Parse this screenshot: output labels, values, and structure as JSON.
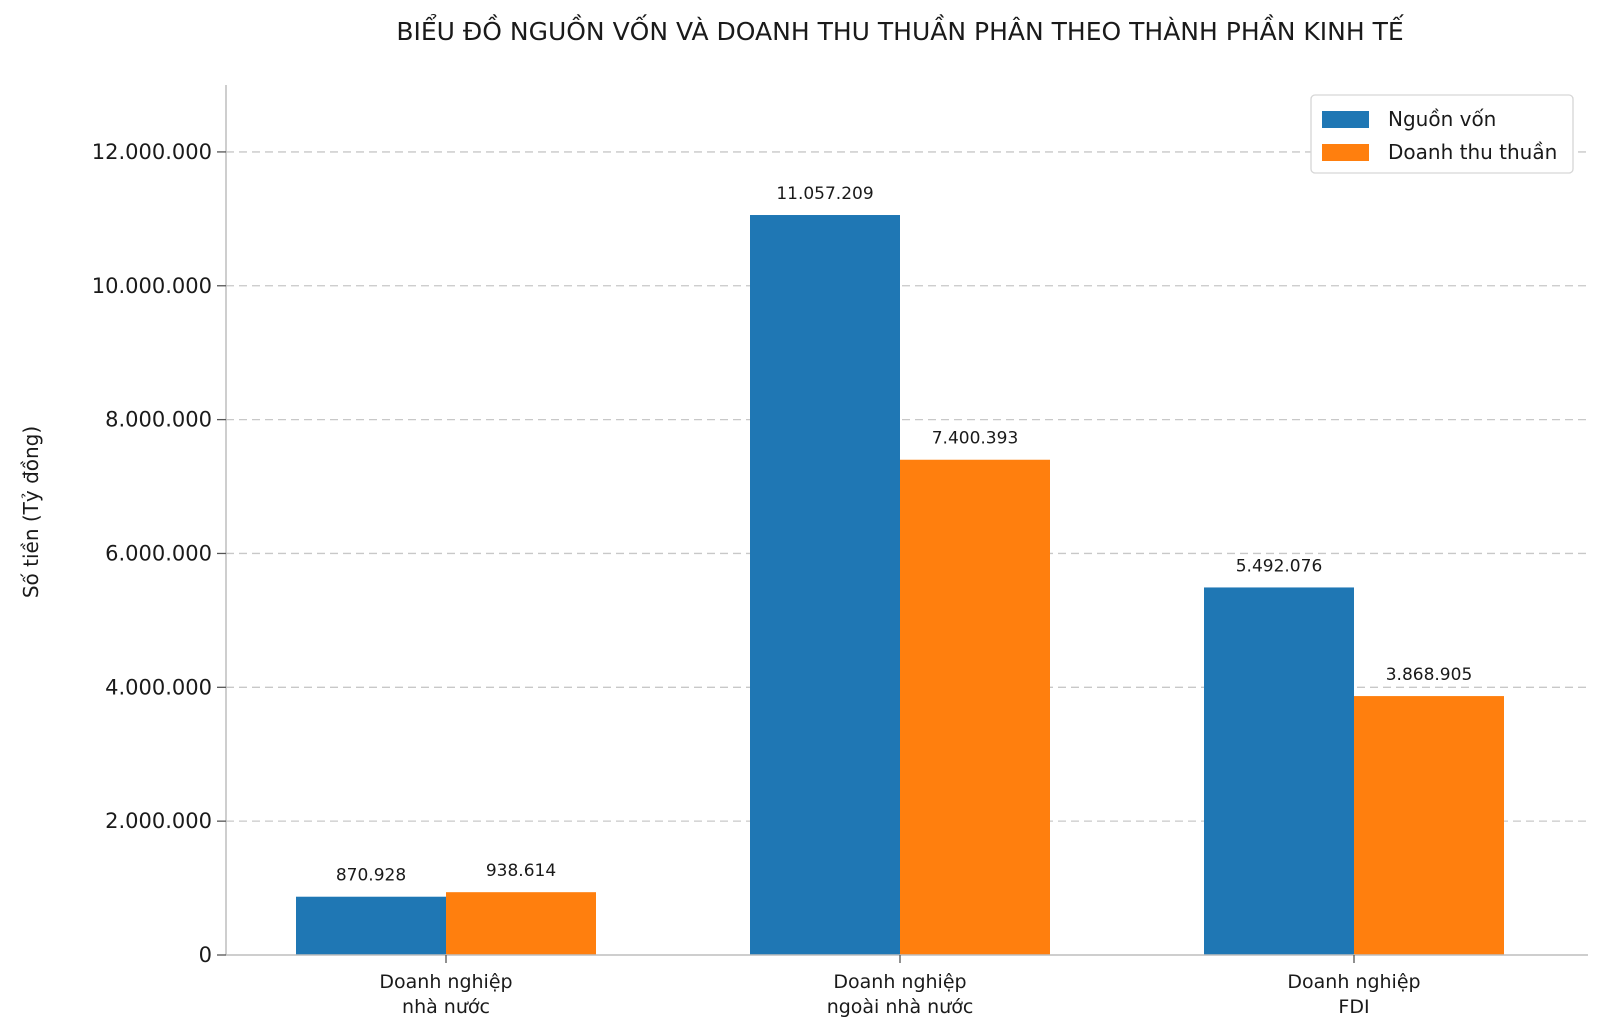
{
  "chart_data": {
    "type": "bar",
    "title": "BIỂU ĐỒ NGUỒN VỐN VÀ DOANH THU THUẦN PHÂN THEO THÀNH PHẦN KINH TẾ",
    "xlabel": "",
    "ylabel": "Số tiền (Tỷ đồng)",
    "ylim": [
      0,
      13000000
    ],
    "yticks": [
      0,
      2000000,
      4000000,
      6000000,
      8000000,
      10000000,
      12000000
    ],
    "ytick_labels": [
      "0",
      "2.000.000",
      "4.000.000",
      "6.000.000",
      "8.000.000",
      "10.000.000",
      "12.000.000"
    ],
    "categories": [
      [
        "Doanh nghiệp",
        "nhà nước"
      ],
      [
        "Doanh nghiệp",
        "ngoài nhà nước"
      ],
      [
        "Doanh nghiệp",
        "FDI"
      ]
    ],
    "series": [
      {
        "name": "Nguồn vốn",
        "color": "#1f77b4",
        "values": [
          870928,
          11057209,
          5492076
        ],
        "labels": [
          "870.928",
          "11.057.209",
          "5.492.076"
        ]
      },
      {
        "name": "Doanh thu thuần",
        "color": "#ff7f0e",
        "values": [
          938614,
          7400393,
          3868905
        ],
        "labels": [
          "938.614",
          "7.400.393",
          "3.868.905"
        ]
      }
    ],
    "grid": "y-dashed",
    "legend_position": "top-right"
  }
}
